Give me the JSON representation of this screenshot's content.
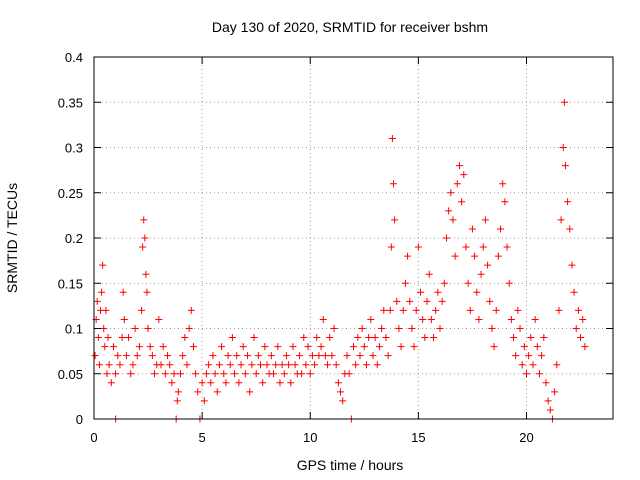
{
  "chart_data": {
    "type": "scatter",
    "title": "Day 130 of 2020, SRMTID for receiver bshm",
    "xlabel": "GPS time / hours",
    "ylabel": "SRMTID / TECUs",
    "xlim": [
      0,
      24
    ],
    "ylim": [
      0,
      0.4
    ],
    "xticks": [
      0,
      5,
      10,
      15,
      20
    ],
    "yticks": [
      0,
      0.05,
      0.1,
      0.15,
      0.2,
      0.25,
      0.3,
      0.35,
      0.4
    ],
    "xtick_labels": [
      "0",
      "5",
      "10",
      "15",
      "20"
    ],
    "ytick_labels": [
      "0",
      "0.05",
      "0.1",
      "0.15",
      "0.2",
      "0.25",
      "0.3",
      "0.35",
      "0.4"
    ],
    "grid": true,
    "marker": "+",
    "color": "#ff0000",
    "series": [
      {
        "name": "bshm",
        "points": [
          [
            0.05,
            0.07
          ],
          [
            0.1,
            0.11
          ],
          [
            0.15,
            0.13
          ],
          [
            0.2,
            0.09
          ],
          [
            0.25,
            0.06
          ],
          [
            0.3,
            0.12
          ],
          [
            0.35,
            0.14
          ],
          [
            0.4,
            0.17
          ],
          [
            0.45,
            0.1
          ],
          [
            0.5,
            0.08
          ],
          [
            0.55,
            0.12
          ],
          [
            0.6,
            0.05
          ],
          [
            0.65,
            0.09
          ],
          [
            0.7,
            0.06
          ],
          [
            0.8,
            0.04
          ],
          [
            0.9,
            0.08
          ],
          [
            1.0,
            0.05
          ],
          [
            1.0,
            0.0
          ],
          [
            1.1,
            0.07
          ],
          [
            1.2,
            0.06
          ],
          [
            1.3,
            0.09
          ],
          [
            1.35,
            0.14
          ],
          [
            1.4,
            0.11
          ],
          [
            1.5,
            0.07
          ],
          [
            1.6,
            0.09
          ],
          [
            1.7,
            0.05
          ],
          [
            1.8,
            0.06
          ],
          [
            1.9,
            0.1
          ],
          [
            2.0,
            0.07
          ],
          [
            2.1,
            0.08
          ],
          [
            2.2,
            0.12
          ],
          [
            2.25,
            0.19
          ],
          [
            2.3,
            0.22
          ],
          [
            2.35,
            0.2
          ],
          [
            2.4,
            0.16
          ],
          [
            2.45,
            0.14
          ],
          [
            2.5,
            0.1
          ],
          [
            2.6,
            0.08
          ],
          [
            2.7,
            0.07
          ],
          [
            2.8,
            0.05
          ],
          [
            2.9,
            0.06
          ],
          [
            3.0,
            0.11
          ],
          [
            3.1,
            0.06
          ],
          [
            3.2,
            0.08
          ],
          [
            3.3,
            0.05
          ],
          [
            3.4,
            0.07
          ],
          [
            3.5,
            0.06
          ],
          [
            3.6,
            0.04
          ],
          [
            3.7,
            0.05
          ],
          [
            3.8,
            0.0
          ],
          [
            3.85,
            0.02
          ],
          [
            3.9,
            0.03
          ],
          [
            4.0,
            0.05
          ],
          [
            4.1,
            0.07
          ],
          [
            4.2,
            0.09
          ],
          [
            4.3,
            0.06
          ],
          [
            4.4,
            0.1
          ],
          [
            4.5,
            0.12
          ],
          [
            4.6,
            0.08
          ],
          [
            4.7,
            0.05
          ],
          [
            4.8,
            0.03
          ],
          [
            4.9,
            0.0
          ],
          [
            5.0,
            0.04
          ],
          [
            5.1,
            0.02
          ],
          [
            5.2,
            0.05
          ],
          [
            5.3,
            0.06
          ],
          [
            5.4,
            0.04
          ],
          [
            5.5,
            0.07
          ],
          [
            5.6,
            0.05
          ],
          [
            5.7,
            0.03
          ],
          [
            5.8,
            0.06
          ],
          [
            5.9,
            0.08
          ],
          [
            6.0,
            0.05
          ],
          [
            6.1,
            0.04
          ],
          [
            6.2,
            0.07
          ],
          [
            6.3,
            0.06
          ],
          [
            6.4,
            0.09
          ],
          [
            6.5,
            0.05
          ],
          [
            6.6,
            0.07
          ],
          [
            6.7,
            0.04
          ],
          [
            6.8,
            0.06
          ],
          [
            6.9,
            0.08
          ],
          [
            7.0,
            0.05
          ],
          [
            7.1,
            0.07
          ],
          [
            7.2,
            0.03
          ],
          [
            7.3,
            0.06
          ],
          [
            7.4,
            0.09
          ],
          [
            7.5,
            0.05
          ],
          [
            7.6,
            0.07
          ],
          [
            7.7,
            0.06
          ],
          [
            7.8,
            0.04
          ],
          [
            7.9,
            0.08
          ],
          [
            8.0,
            0.06
          ],
          [
            8.1,
            0.05
          ],
          [
            8.2,
            0.07
          ],
          [
            8.3,
            0.05
          ],
          [
            8.4,
            0.06
          ],
          [
            8.5,
            0.08
          ],
          [
            8.6,
            0.04
          ],
          [
            8.7,
            0.06
          ],
          [
            8.8,
            0.05
          ],
          [
            8.9,
            0.07
          ],
          [
            9.0,
            0.06
          ],
          [
            9.1,
            0.04
          ],
          [
            9.2,
            0.08
          ],
          [
            9.3,
            0.06
          ],
          [
            9.4,
            0.05
          ],
          [
            9.5,
            0.07
          ],
          [
            9.6,
            0.05
          ],
          [
            9.7,
            0.09
          ],
          [
            9.8,
            0.06
          ],
          [
            9.9,
            0.08
          ],
          [
            10.0,
            0.05
          ],
          [
            10.1,
            0.07
          ],
          [
            10.2,
            0.06
          ],
          [
            10.3,
            0.09
          ],
          [
            10.4,
            0.07
          ],
          [
            10.5,
            0.08
          ],
          [
            10.6,
            0.11
          ],
          [
            10.7,
            0.07
          ],
          [
            10.8,
            0.06
          ],
          [
            10.9,
            0.09
          ],
          [
            11.0,
            0.07
          ],
          [
            11.1,
            0.1
          ],
          [
            11.2,
            0.06
          ],
          [
            11.3,
            0.04
          ],
          [
            11.4,
            0.03
          ],
          [
            11.5,
            0.02
          ],
          [
            11.6,
            0.05
          ],
          [
            11.7,
            0.07
          ],
          [
            11.8,
            0.05
          ],
          [
            11.9,
            0.0
          ],
          [
            12.0,
            0.08
          ],
          [
            12.1,
            0.06
          ],
          [
            12.2,
            0.09
          ],
          [
            12.3,
            0.07
          ],
          [
            12.4,
            0.1
          ],
          [
            12.5,
            0.08
          ],
          [
            12.6,
            0.06
          ],
          [
            12.7,
            0.09
          ],
          [
            12.8,
            0.11
          ],
          [
            12.9,
            0.07
          ],
          [
            13.0,
            0.09
          ],
          [
            13.1,
            0.06
          ],
          [
            13.2,
            0.08
          ],
          [
            13.3,
            0.1
          ],
          [
            13.4,
            0.12
          ],
          [
            13.5,
            0.09
          ],
          [
            13.6,
            0.07
          ],
          [
            13.7,
            0.12
          ],
          [
            13.75,
            0.19
          ],
          [
            13.8,
            0.31
          ],
          [
            13.85,
            0.26
          ],
          [
            13.9,
            0.22
          ],
          [
            14.0,
            0.13
          ],
          [
            14.1,
            0.1
          ],
          [
            14.2,
            0.08
          ],
          [
            14.3,
            0.12
          ],
          [
            14.4,
            0.15
          ],
          [
            14.5,
            0.18
          ],
          [
            14.6,
            0.13
          ],
          [
            14.7,
            0.1
          ],
          [
            14.8,
            0.08
          ],
          [
            14.9,
            0.12
          ],
          [
            15.0,
            0.19
          ],
          [
            15.1,
            0.14
          ],
          [
            15.2,
            0.11
          ],
          [
            15.3,
            0.09
          ],
          [
            15.4,
            0.13
          ],
          [
            15.5,
            0.16
          ],
          [
            15.6,
            0.11
          ],
          [
            15.7,
            0.09
          ],
          [
            15.8,
            0.12
          ],
          [
            15.9,
            0.14
          ],
          [
            16.0,
            0.1
          ],
          [
            16.1,
            0.13
          ],
          [
            16.2,
            0.15
          ],
          [
            16.3,
            0.2
          ],
          [
            16.4,
            0.23
          ],
          [
            16.5,
            0.25
          ],
          [
            16.6,
            0.22
          ],
          [
            16.7,
            0.18
          ],
          [
            16.8,
            0.26
          ],
          [
            16.9,
            0.28
          ],
          [
            17.0,
            0.24
          ],
          [
            17.1,
            0.27
          ],
          [
            17.2,
            0.19
          ],
          [
            17.3,
            0.15
          ],
          [
            17.4,
            0.12
          ],
          [
            17.5,
            0.21
          ],
          [
            17.6,
            0.18
          ],
          [
            17.7,
            0.14
          ],
          [
            17.8,
            0.11
          ],
          [
            17.9,
            0.16
          ],
          [
            18.0,
            0.19
          ],
          [
            18.1,
            0.22
          ],
          [
            18.2,
            0.17
          ],
          [
            18.3,
            0.13
          ],
          [
            18.4,
            0.1
          ],
          [
            18.5,
            0.08
          ],
          [
            18.6,
            0.12
          ],
          [
            18.7,
            0.18
          ],
          [
            18.8,
            0.21
          ],
          [
            18.9,
            0.26
          ],
          [
            19.0,
            0.24
          ],
          [
            19.1,
            0.19
          ],
          [
            19.2,
            0.15
          ],
          [
            19.3,
            0.11
          ],
          [
            19.4,
            0.09
          ],
          [
            19.5,
            0.07
          ],
          [
            19.6,
            0.12
          ],
          [
            19.7,
            0.1
          ],
          [
            19.8,
            0.06
          ],
          [
            19.9,
            0.08
          ],
          [
            20.0,
            0.05
          ],
          [
            20.1,
            0.07
          ],
          [
            20.2,
            0.09
          ],
          [
            20.3,
            0.06
          ],
          [
            20.4,
            0.11
          ],
          [
            20.5,
            0.08
          ],
          [
            20.6,
            0.05
          ],
          [
            20.7,
            0.07
          ],
          [
            20.8,
            0.09
          ],
          [
            20.9,
            0.04
          ],
          [
            21.0,
            0.02
          ],
          [
            21.1,
            0.01
          ],
          [
            21.2,
            0.0
          ],
          [
            21.3,
            0.03
          ],
          [
            21.4,
            0.06
          ],
          [
            21.5,
            0.12
          ],
          [
            21.6,
            0.22
          ],
          [
            21.7,
            0.3
          ],
          [
            21.75,
            0.35
          ],
          [
            21.8,
            0.28
          ],
          [
            21.9,
            0.24
          ],
          [
            22.0,
            0.21
          ],
          [
            22.1,
            0.17
          ],
          [
            22.2,
            0.14
          ],
          [
            22.3,
            0.1
          ],
          [
            22.4,
            0.12
          ],
          [
            22.5,
            0.09
          ],
          [
            22.6,
            0.11
          ],
          [
            22.7,
            0.08
          ]
        ]
      }
    ]
  }
}
